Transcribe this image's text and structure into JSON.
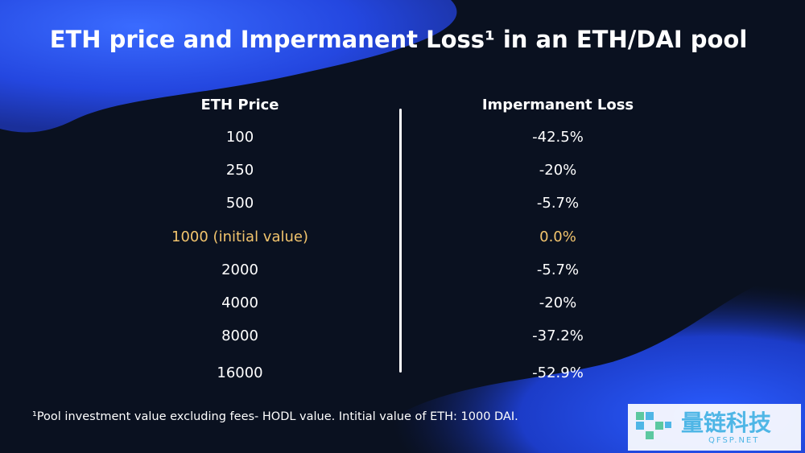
{
  "title": "ETH price and Impermanent Loss¹ in an ETH/DAI pool",
  "table": {
    "header": [
      "ETH Price",
      "Impermanent Loss"
    ],
    "rows": [
      [
        "100",
        "-42.5%"
      ],
      [
        "250",
        "-20%"
      ],
      [
        "500",
        "-5.7%"
      ],
      [
        "1000 (initial value)",
        "0.0%"
      ],
      [
        "2000",
        "-5.7%"
      ],
      [
        "4000",
        "-20%"
      ],
      [
        "8000",
        "-37.2%"
      ],
      [
        "16000",
        "-52.9%"
      ]
    ],
    "highlight": {
      "row": 3,
      "color": "#f2c46d"
    }
  },
  "footnote": "¹Pool investment value excluding fees- HODL value. Intitial value of ETH: 1000 DAI.",
  "watermark": {
    "name": "量链科技",
    "url": "QFSP.NET"
  }
}
